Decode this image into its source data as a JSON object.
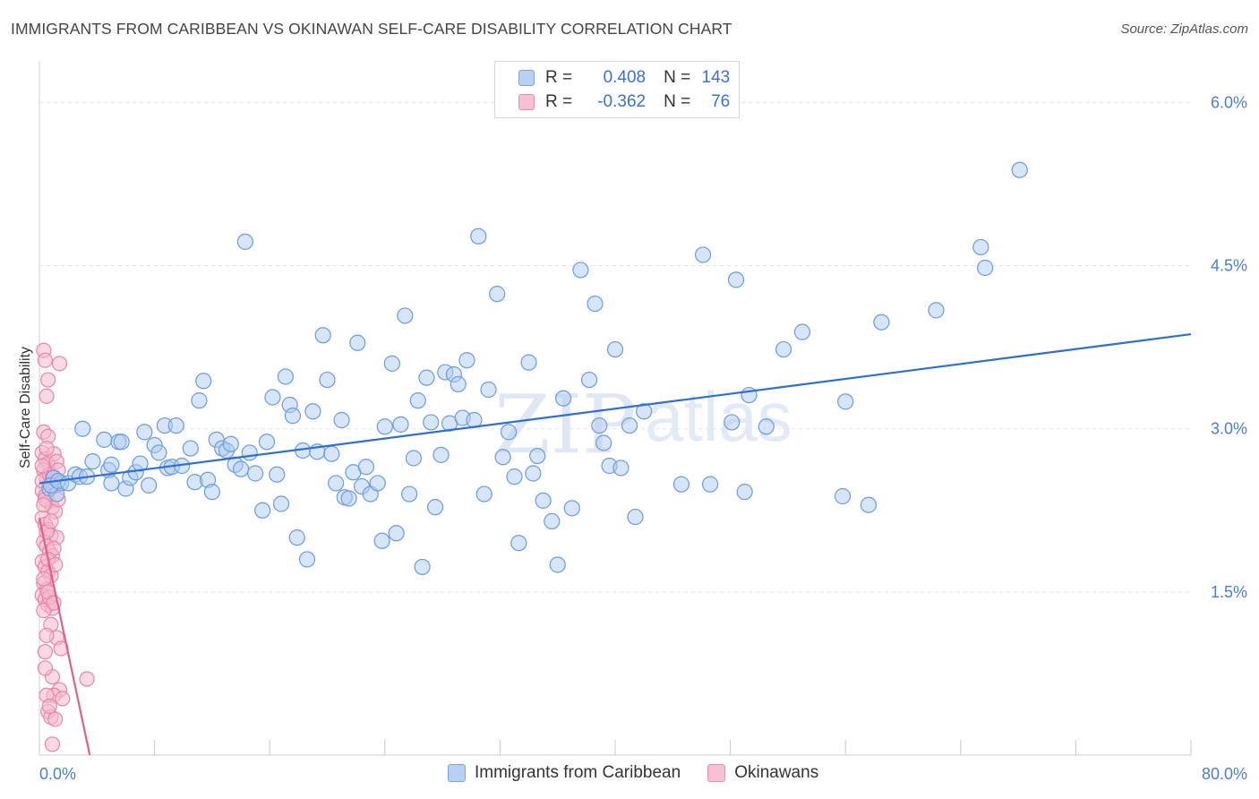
{
  "header": {
    "title": "IMMIGRANTS FROM CARIBBEAN VS OKINAWAN SELF-CARE DISABILITY CORRELATION CHART",
    "source": "Source: ZipAtlas.com"
  },
  "watermark": {
    "zip": "ZIP",
    "atlas": "atlas"
  },
  "legend": {
    "r_label": "R =",
    "n_label": "N =",
    "rows": [
      {
        "r": "0.408",
        "n": "143",
        "fill": "#b8d0f2",
        "stroke": "#7aa6e6"
      },
      {
        "r": "-0.362",
        "n": "76",
        "fill": "#f7c0d2",
        "stroke": "#eb8cac"
      }
    ]
  },
  "colors": {
    "blue_fill": "#aecbf0",
    "blue_stroke": "#6b9be0",
    "blue_line": "#2f6fcf",
    "pink_fill": "#f5b9cd",
    "pink_stroke": "#e986a8",
    "pink_line": "#e0608c",
    "grid": "#e3e3e3",
    "axis": "#d0d0d0"
  },
  "chart_data": {
    "type": "scatter",
    "title": "IMMIGRANTS FROM CARIBBEAN VS OKINAWAN SELF-CARE DISABILITY CORRELATION CHART",
    "xlabel": "",
    "ylabel": "Self-Care Disability",
    "xlim": [
      0,
      80
    ],
    "ylim": [
      0,
      6.3
    ],
    "x_tick_labels": [
      "0.0%",
      "80.0%"
    ],
    "y_ticks": [
      1.5,
      3.0,
      4.5,
      6.0
    ],
    "y_tick_labels": [
      "1.5%",
      "3.0%",
      "4.5%",
      "6.0%"
    ],
    "grid": true,
    "legend_position": "top-center",
    "series": [
      {
        "name": "Immigrants from Caribbean",
        "r": 0.408,
        "n": 143,
        "trend": {
          "x": [
            0.0,
            80.0
          ],
          "y": [
            2.5,
            3.87
          ]
        },
        "points": [
          [
            0.7,
            2.45
          ],
          [
            1.0,
            2.55
          ],
          [
            1.2,
            2.4
          ],
          [
            1.5,
            2.5
          ],
          [
            0.8,
            2.48
          ],
          [
            1.3,
            2.52
          ],
          [
            2.0,
            2.5
          ],
          [
            2.5,
            2.58
          ],
          [
            2.8,
            2.56
          ],
          [
            3.0,
            3.0
          ],
          [
            3.3,
            2.56
          ],
          [
            3.7,
            2.7
          ],
          [
            4.5,
            2.9
          ],
          [
            4.8,
            2.62
          ],
          [
            5.0,
            2.67
          ],
          [
            5.0,
            2.5
          ],
          [
            5.5,
            2.88
          ],
          [
            5.7,
            2.88
          ],
          [
            6.0,
            2.45
          ],
          [
            6.3,
            2.55
          ],
          [
            6.7,
            2.6
          ],
          [
            7.0,
            2.68
          ],
          [
            7.3,
            2.97
          ],
          [
            7.6,
            2.48
          ],
          [
            8.0,
            2.85
          ],
          [
            8.3,
            2.78
          ],
          [
            8.7,
            3.03
          ],
          [
            8.9,
            2.64
          ],
          [
            9.2,
            2.65
          ],
          [
            9.5,
            3.03
          ],
          [
            9.9,
            2.66
          ],
          [
            10.5,
            2.82
          ],
          [
            10.8,
            2.51
          ],
          [
            11.1,
            3.26
          ],
          [
            11.4,
            3.44
          ],
          [
            11.7,
            2.53
          ],
          [
            12.0,
            2.42
          ],
          [
            12.3,
            2.9
          ],
          [
            12.7,
            2.82
          ],
          [
            13.0,
            2.8
          ],
          [
            13.3,
            2.86
          ],
          [
            13.6,
            2.67
          ],
          [
            14.0,
            2.63
          ],
          [
            14.3,
            4.72
          ],
          [
            14.6,
            2.78
          ],
          [
            15.0,
            2.59
          ],
          [
            15.5,
            2.25
          ],
          [
            15.8,
            2.88
          ],
          [
            16.2,
            3.29
          ],
          [
            16.5,
            2.58
          ],
          [
            16.8,
            2.31
          ],
          [
            17.1,
            3.48
          ],
          [
            17.4,
            3.22
          ],
          [
            17.6,
            3.12
          ],
          [
            17.9,
            2.0
          ],
          [
            18.3,
            2.8
          ],
          [
            18.6,
            1.8
          ],
          [
            19.0,
            3.16
          ],
          [
            19.3,
            2.79
          ],
          [
            19.7,
            3.86
          ],
          [
            20.0,
            3.45
          ],
          [
            20.3,
            2.77
          ],
          [
            20.6,
            2.5
          ],
          [
            21.0,
            3.08
          ],
          [
            21.2,
            2.37
          ],
          [
            21.5,
            2.36
          ],
          [
            21.8,
            2.6
          ],
          [
            22.1,
            3.79
          ],
          [
            22.4,
            2.47
          ],
          [
            22.7,
            2.65
          ],
          [
            23.0,
            2.4
          ],
          [
            23.5,
            2.5
          ],
          [
            23.8,
            1.97
          ],
          [
            24.0,
            3.02
          ],
          [
            24.5,
            3.6
          ],
          [
            24.8,
            2.04
          ],
          [
            25.1,
            3.04
          ],
          [
            25.4,
            4.04
          ],
          [
            25.7,
            2.4
          ],
          [
            26.0,
            2.73
          ],
          [
            26.3,
            3.26
          ],
          [
            26.6,
            1.73
          ],
          [
            26.9,
            3.47
          ],
          [
            27.2,
            3.06
          ],
          [
            27.5,
            2.28
          ],
          [
            27.9,
            2.76
          ],
          [
            28.2,
            3.52
          ],
          [
            28.5,
            3.05
          ],
          [
            28.8,
            3.5
          ],
          [
            29.1,
            3.41
          ],
          [
            29.4,
            3.1
          ],
          [
            29.7,
            3.63
          ],
          [
            30.2,
            3.08
          ],
          [
            30.5,
            4.77
          ],
          [
            30.9,
            2.4
          ],
          [
            31.2,
            3.36
          ],
          [
            31.8,
            4.24
          ],
          [
            32.2,
            2.74
          ],
          [
            32.6,
            2.97
          ],
          [
            33.0,
            2.56
          ],
          [
            33.3,
            1.95
          ],
          [
            34.0,
            3.61
          ],
          [
            34.3,
            2.59
          ],
          [
            34.6,
            2.75
          ],
          [
            35.0,
            2.34
          ],
          [
            35.6,
            2.15
          ],
          [
            36.0,
            1.75
          ],
          [
            36.4,
            3.28
          ],
          [
            37.0,
            2.27
          ],
          [
            37.6,
            4.46
          ],
          [
            38.2,
            3.45
          ],
          [
            38.6,
            4.15
          ],
          [
            38.9,
            3.03
          ],
          [
            39.2,
            2.87
          ],
          [
            39.6,
            2.66
          ],
          [
            40.0,
            3.73
          ],
          [
            40.4,
            2.64
          ],
          [
            41.0,
            3.03
          ],
          [
            41.4,
            2.19
          ],
          [
            42.0,
            3.16
          ],
          [
            44.6,
            2.49
          ],
          [
            46.1,
            4.6
          ],
          [
            46.6,
            2.49
          ],
          [
            48.1,
            3.06
          ],
          [
            48.4,
            4.37
          ],
          [
            49.0,
            2.42
          ],
          [
            49.3,
            3.31
          ],
          [
            50.5,
            3.02
          ],
          [
            51.7,
            3.73
          ],
          [
            53.0,
            3.89
          ],
          [
            56.0,
            3.25
          ],
          [
            55.8,
            2.38
          ],
          [
            57.6,
            2.3
          ],
          [
            58.5,
            3.98
          ],
          [
            62.3,
            4.09
          ],
          [
            65.4,
            4.67
          ],
          [
            65.7,
            4.48
          ],
          [
            68.1,
            5.38
          ]
        ]
      },
      {
        "name": "Okinawans",
        "r": -0.362,
        "n": 76,
        "trend": {
          "x": [
            0.0,
            3.5
          ],
          "y": [
            2.18,
            0.0
          ]
        },
        "points": [
          [
            0.3,
            3.72
          ],
          [
            0.4,
            3.63
          ],
          [
            0.6,
            3.45
          ],
          [
            0.5,
            3.3
          ],
          [
            1.4,
            3.6
          ],
          [
            0.3,
            2.97
          ],
          [
            0.6,
            2.93
          ],
          [
            0.2,
            2.78
          ],
          [
            0.4,
            2.72
          ],
          [
            0.6,
            2.68
          ],
          [
            1.0,
            2.77
          ],
          [
            1.2,
            2.7
          ],
          [
            0.3,
            2.62
          ],
          [
            0.5,
            2.55
          ],
          [
            0.7,
            2.5
          ],
          [
            1.0,
            2.47
          ],
          [
            0.2,
            2.43
          ],
          [
            0.4,
            2.38
          ],
          [
            0.6,
            2.33
          ],
          [
            0.9,
            2.28
          ],
          [
            1.1,
            2.24
          ],
          [
            0.2,
            2.18
          ],
          [
            0.4,
            2.12
          ],
          [
            0.6,
            2.07
          ],
          [
            0.8,
            2.02
          ],
          [
            1.2,
            2.0
          ],
          [
            0.3,
            1.96
          ],
          [
            0.5,
            1.92
          ],
          [
            0.7,
            1.87
          ],
          [
            0.9,
            1.83
          ],
          [
            0.2,
            1.78
          ],
          [
            0.4,
            1.73
          ],
          [
            0.6,
            1.69
          ],
          [
            0.8,
            1.65
          ],
          [
            0.3,
            1.58
          ],
          [
            0.5,
            1.52
          ],
          [
            0.2,
            1.47
          ],
          [
            0.4,
            1.43
          ],
          [
            0.6,
            1.38
          ],
          [
            0.9,
            1.35
          ],
          [
            0.3,
            1.33
          ],
          [
            1.2,
            1.08
          ],
          [
            1.5,
            0.98
          ],
          [
            0.4,
            0.95
          ],
          [
            0.9,
            0.72
          ],
          [
            3.3,
            0.7
          ],
          [
            1.4,
            0.6
          ],
          [
            1.0,
            0.55
          ],
          [
            0.5,
            0.55
          ],
          [
            1.6,
            0.52
          ],
          [
            0.6,
            0.4
          ],
          [
            0.8,
            0.35
          ],
          [
            1.1,
            0.33
          ],
          [
            0.9,
            0.1
          ],
          [
            0.2,
            2.52
          ],
          [
            0.7,
            2.58
          ],
          [
            1.3,
            2.62
          ],
          [
            0.5,
            2.05
          ],
          [
            0.8,
            2.15
          ],
          [
            1.0,
            1.9
          ],
          [
            0.3,
            1.62
          ],
          [
            0.6,
            1.8
          ],
          [
            0.4,
            2.35
          ],
          [
            0.7,
            1.45
          ],
          [
            0.9,
            2.55
          ],
          [
            0.5,
            2.82
          ],
          [
            0.2,
            2.66
          ],
          [
            1.1,
            1.75
          ],
          [
            0.6,
            1.5
          ],
          [
            0.8,
            1.2
          ],
          [
            1.3,
            2.35
          ],
          [
            0.4,
            0.8
          ],
          [
            0.7,
            0.45
          ],
          [
            1.0,
            1.4
          ],
          [
            0.3,
            2.3
          ],
          [
            0.5,
            1.1
          ]
        ]
      }
    ]
  }
}
